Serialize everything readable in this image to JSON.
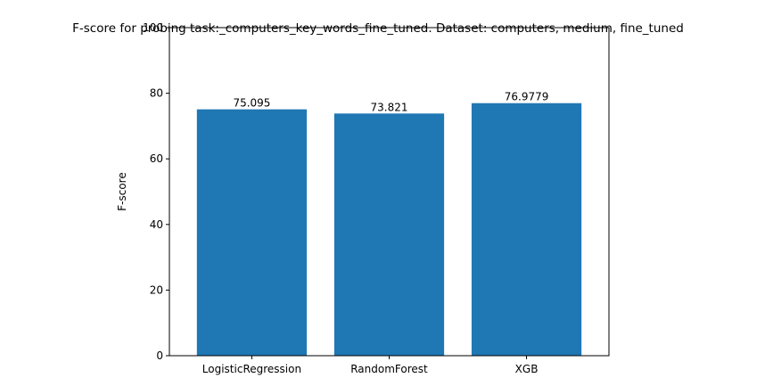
{
  "chart_data": {
    "type": "bar",
    "title": "F-score for probing task:_computers_key_words_fine_tuned. Dataset: computers, medium, fine_tuned",
    "xlabel": "",
    "ylabel": "F-score",
    "categories": [
      "LogisticRegression",
      "RandomForest",
      "XGB"
    ],
    "values": [
      75.095,
      73.821,
      76.9779
    ],
    "data_labels": [
      "75.095",
      "73.821",
      "76.9779"
    ],
    "ylim": [
      0,
      100
    ],
    "yticks": [
      0,
      20,
      40,
      60,
      80,
      100
    ],
    "grid": false,
    "legend": "none",
    "bar_color": "#1f77b4"
  }
}
